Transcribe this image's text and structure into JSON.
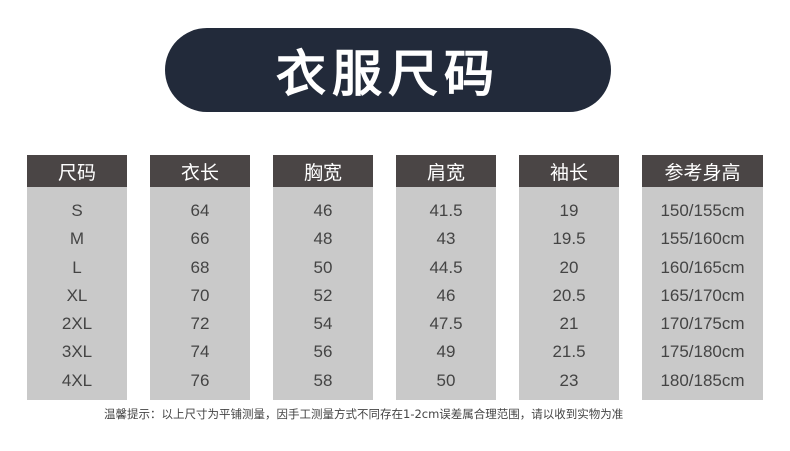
{
  "title": "衣服尺码",
  "columns": [
    {
      "header": "尺码",
      "values": [
        "S",
        "M",
        "L",
        "XL",
        "2XL",
        "3XL",
        "4XL"
      ]
    },
    {
      "header": "衣长",
      "values": [
        "64",
        "66",
        "68",
        "70",
        "72",
        "74",
        "76"
      ]
    },
    {
      "header": "胸宽",
      "values": [
        "46",
        "48",
        "50",
        "52",
        "54",
        "56",
        "58"
      ]
    },
    {
      "header": "肩宽",
      "values": [
        "41.5",
        "43",
        "44.5",
        "46",
        "47.5",
        "49",
        "50"
      ]
    },
    {
      "header": "袖长",
      "values": [
        "19",
        "19.5",
        "20",
        "20.5",
        "21",
        "21.5",
        "23"
      ]
    },
    {
      "header": "参考身高",
      "values": [
        "150/155cm",
        "155/160cm",
        "160/165cm",
        "165/170cm",
        "170/175cm",
        "175/180cm",
        "180/185cm"
      ]
    }
  ],
  "note": "温馨提示：以上尺寸为平铺测量，因手工测量方式不同存在1-2cm误差属合理范围，请以收到实物为准",
  "colors": {
    "title_bg": "#222a3a",
    "header_bg": "#4a4545",
    "cell_bg": "#c9c9c9"
  }
}
